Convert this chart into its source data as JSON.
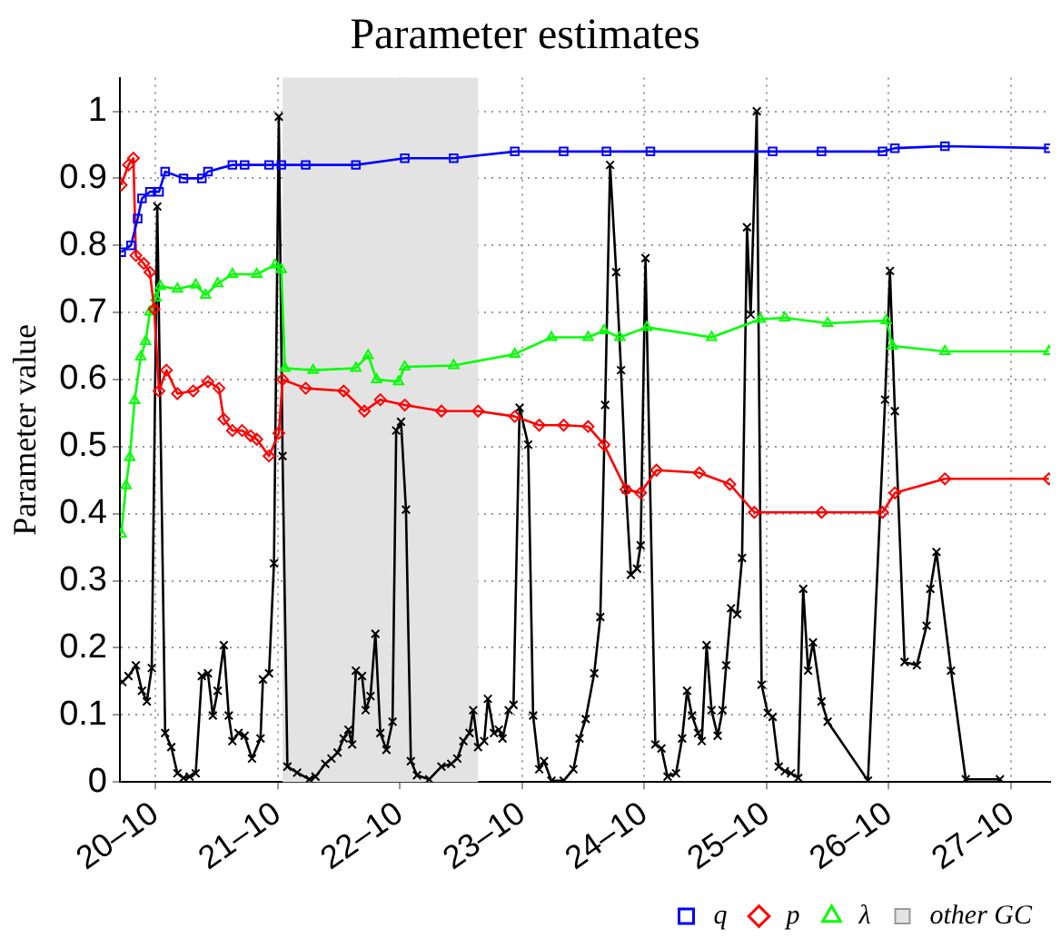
{
  "chart_data": {
    "type": "line",
    "title": "Parameter estimates",
    "ylabel": "Parameter value",
    "xlim": [
      "--10-19T17:02",
      "--10-27T07:41"
    ],
    "ylim": [
      0,
      1.05
    ],
    "xticks": [
      {
        "value": "--10-20",
        "label": "20–10"
      },
      {
        "value": "--10-21",
        "label": "21–10"
      },
      {
        "value": "--10-22",
        "label": "22–10"
      },
      {
        "value": "--10-23",
        "label": "23–10"
      },
      {
        "value": "--10-24",
        "label": "24–10"
      },
      {
        "value": "--10-25",
        "label": "25–10"
      },
      {
        "value": "--10-26",
        "label": "26–10"
      },
      {
        "value": "--10-27",
        "label": "27–10"
      }
    ],
    "yticks": [
      0,
      0.1,
      0.2,
      0.3,
      0.4,
      0.5,
      0.6,
      0.7,
      0.8,
      0.9,
      1
    ],
    "grid": true,
    "legend": "bottom right",
    "line_style": "solid",
    "bands": [
      {
        "axis": "x",
        "from": "--10-21T00:58",
        "to": "--10-22T15:22",
        "label": "other GC",
        "color": "#e3e3e3"
      }
    ],
    "series": [
      {
        "name": "q",
        "color": "#0000ff",
        "marker": "square",
        "x": [
          "--10-19T17:17",
          "--10-19T19:12",
          "--10-19T20:31",
          "--10-19T21:22",
          "--10-19T22:55",
          "--10-20T00:43",
          "--10-20T01:55",
          "--10-20T05:31",
          "--10-20T09:07",
          "--10-20T10:19",
          "--10-20T15:07",
          "--10-20T17:31",
          "--10-20T22:19",
          "--10-21T00:43",
          "--10-21T05:31",
          "--10-21T15:22",
          "--10-22T00:58",
          "--10-22T10:34",
          "--10-22T22:34",
          "--10-23T08:10",
          "--10-23T16:34",
          "--10-24T01:12",
          "--10-25T01:12",
          "--10-25T10:48",
          "--10-25T22:48",
          "--10-26T01:12",
          "--10-26T11:02",
          "--10-27T07:26"
        ],
        "values": [
          0.79,
          0.8,
          0.84,
          0.87,
          0.88,
          0.88,
          0.91,
          0.9,
          0.9,
          0.91,
          0.92,
          0.92,
          0.92,
          0.92,
          0.92,
          0.92,
          0.93,
          0.93,
          0.94,
          0.94,
          0.94,
          0.94,
          0.94,
          0.94,
          0.94,
          0.945,
          0.948,
          0.945
        ]
      },
      {
        "name": "p",
        "color": "#ff0000",
        "marker": "diamond",
        "x": [
          "--10-19T17:17",
          "--10-19T18:43",
          "--10-19T19:41",
          "--10-19T20:10",
          "--10-19T21:43",
          "--10-19T22:55",
          "--10-19T23:46",
          "--10-20T00:43",
          "--10-20T02:10",
          "--10-20T04:19",
          "--10-20T07:26",
          "--10-20T10:19",
          "--10-20T12:29",
          "--10-20T13:26",
          "--10-20T15:07",
          "--10-20T17:02",
          "--10-20T18:43",
          "--10-20T19:55",
          "--10-20T22:19",
          "--10-21T00:14",
          "--10-21T00:58",
          "--10-21T05:31",
          "--10-21T12:58",
          "--10-21T17:02",
          "--10-21T20:10",
          "--10-22T00:58",
          "--10-22T08:10",
          "--10-22T15:22",
          "--10-22T22:34",
          "--10-23T03:22",
          "--10-23T08:10",
          "--10-23T12:58",
          "--10-23T16:05",
          "--10-23T20:24",
          "--10-23T23:17",
          "--10-24T02:24",
          "--10-24T10:48",
          "--10-24T16:48",
          "--10-24T21:36",
          "--10-25T10:48",
          "--10-25T22:48",
          "--10-26T01:12",
          "--10-26T11:02",
          "--10-27T07:26"
        ],
        "values": [
          0.89,
          0.92,
          0.93,
          0.785,
          0.773,
          0.76,
          0.705,
          0.583,
          0.614,
          0.579,
          0.583,
          0.597,
          0.587,
          0.541,
          0.524,
          0.524,
          0.516,
          0.511,
          0.486,
          0.52,
          0.6,
          0.587,
          0.583,
          0.553,
          0.57,
          0.562,
          0.553,
          0.553,
          0.545,
          0.532,
          0.532,
          0.53,
          0.503,
          0.436,
          0.431,
          0.465,
          0.461,
          0.444,
          0.402,
          0.402,
          0.402,
          0.431,
          0.452,
          0.452
        ]
      },
      {
        "name": "λ",
        "color": "#00ff00",
        "marker": "triangle",
        "x": [
          "--10-19T17:17",
          "--10-19T18:14",
          "--10-19T18:58",
          "--10-19T19:55",
          "--10-19T21:07",
          "--10-19T22:05",
          "--10-19T22:55",
          "--10-20T00:07",
          "--10-20T00:58",
          "--10-20T04:19",
          "--10-20T07:55",
          "--10-20T09:50",
          "--10-20T12:14",
          "--10-20T15:07",
          "--10-20T19:55",
          "--10-20T23:31",
          "--10-21T00:43",
          "--10-21T01:26",
          "--10-21T06:58",
          "--10-21T15:22",
          "--10-21T17:46",
          "--10-21T19:26",
          "--10-21T23:46",
          "--10-22T00:58",
          "--10-22T10:34",
          "--10-22T22:34",
          "--10-23T05:46",
          "--10-23T12:58",
          "--10-23T16:05",
          "--10-23T19:12",
          "--10-24T00:29",
          "--10-24T13:12",
          "--10-24T22:48",
          "--10-25T03:36",
          "--10-25T12:00",
          "--10-25T23:31",
          "--10-26T00:43",
          "--10-26T11:02",
          "--10-27T07:26"
        ],
        "values": [
          0.37,
          0.442,
          0.484,
          0.569,
          0.634,
          0.657,
          0.701,
          0.722,
          0.739,
          0.735,
          0.741,
          0.726,
          0.743,
          0.757,
          0.757,
          0.771,
          0.764,
          0.617,
          0.614,
          0.617,
          0.636,
          0.6,
          0.597,
          0.619,
          0.621,
          0.638,
          0.663,
          0.663,
          0.673,
          0.663,
          0.678,
          0.663,
          0.69,
          0.692,
          0.684,
          0.688,
          0.65,
          0.642,
          0.642
        ]
      },
      {
        "color": "#000000",
        "marker": "cross",
        "x": [
          "--10-19T17:31",
          "--10-19T18:43",
          "--10-19T20:10",
          "--10-19T21:22",
          "--10-19T22:19",
          "--10-19T23:17",
          "--10-20T00:22",
          "--10-20T01:55",
          "--10-20T03:07",
          "--10-20T04:19",
          "--10-20T05:31",
          "--10-20T06:43",
          "--10-20T07:55",
          "--10-20T09:07",
          "--10-20T10:19",
          "--10-20T11:17",
          "--10-20T12:14",
          "--10-20T13:26",
          "--10-20T14:24",
          "--10-20T15:07",
          "--10-20T16:19",
          "--10-20T17:31",
          "--10-20T18:58",
          "--10-20T20:38",
          "--10-20T21:07",
          "--10-20T22:19",
          "--10-20T23:17",
          "--10-21T00:14",
          "--10-21T00:58",
          "--10-21T01:55",
          "--10-21T03:50",
          "--10-21T06:14",
          "--10-21T07:26",
          "--10-21T09:22",
          "--10-21T10:34",
          "--10-21T11:46",
          "--10-21T12:58",
          "--10-21T13:55",
          "--10-21T14:38",
          "--10-21T15:22",
          "--10-21T16:34",
          "--10-21T17:17",
          "--10-21T18:14",
          "--10-21T19:12",
          "--10-21T20:10",
          "--10-21T21:22",
          "--10-21T22:34",
          "--10-21T23:17",
          "--10-22T00:14",
          "--10-22T01:12",
          "--10-22T02:10",
          "--10-22T03:22",
          "--10-22T05:46",
          "--10-22T08:10",
          "--10-22T10:05",
          "--10-22T11:17",
          "--10-22T12:29",
          "--10-22T13:41",
          "--10-22T14:24",
          "--10-22T15:22",
          "--10-22T16:34",
          "--10-22T17:17",
          "--10-22T18:29",
          "--10-22T19:26",
          "--10-22T20:10",
          "--10-22T21:22",
          "--10-22T22:19",
          "--10-22T23:31",
          "--10-23T01:12",
          "--10-23T02:10",
          "--10-23T03:22",
          "--10-23T04:19",
          "--10-23T05:46",
          "--10-23T08:10",
          "--10-23T10:05",
          "--10-23T11:17",
          "--10-23T12:29",
          "--10-23T14:10",
          "--10-23T15:22",
          "--10-23T16:19",
          "--10-23T17:17",
          "--10-23T18:29",
          "--10-23T19:26",
          "--10-23T20:24",
          "--10-23T21:22",
          "--10-23T22:34",
          "--10-23T23:17",
          "--10-24T00:14",
          "--10-24T02:10",
          "--10-24T03:22",
          "--10-24T04:34",
          "--10-24T06:14",
          "--10-24T07:26",
          "--10-24T08:24",
          "--10-24T09:22",
          "--10-24T10:34",
          "--10-24T11:17",
          "--10-24T12:14",
          "--10-24T13:12",
          "--10-24T14:24",
          "--10-24T15:22",
          "--10-24T16:05",
          "--10-24T17:02",
          "--10-24T18:14",
          "--10-24T19:12",
          "--10-24T20:10",
          "--10-24T20:53",
          "--10-24T22:05",
          "--10-24T23:02",
          "--10-25T00:14",
          "--10-25T01:12",
          "--10-25T02:24",
          "--10-25T03:36",
          "--10-25T04:48",
          "--10-25T06:14",
          "--10-25T07:12",
          "--10-25T08:10",
          "--10-25T09:07",
          "--10-25T10:48",
          "--10-25T12:00",
          "--10-25T19:55",
          "--10-25T23:17",
          "--10-26T00:14",
          "--10-26T01:12",
          "--10-26T03:07",
          "--10-26T05:31",
          "--10-26T07:26",
          "--10-26T08:10",
          "--10-26T09:22",
          "--10-26T12:14",
          "--10-26T15:07",
          "--10-26T21:50"
        ],
        "values": [
          0.149,
          0.158,
          0.174,
          0.136,
          0.12,
          0.17,
          0.858,
          0.073,
          0.052,
          0.013,
          0.006,
          0.008,
          0.013,
          0.158,
          0.162,
          0.099,
          0.136,
          0.204,
          0.099,
          0.061,
          0.073,
          0.069,
          0.035,
          0.065,
          0.153,
          0.162,
          0.326,
          0.992,
          0.486,
          0.023,
          0.014,
          0.004,
          0.008,
          0.027,
          0.035,
          0.044,
          0.065,
          0.078,
          0.056,
          0.166,
          0.158,
          0.107,
          0.128,
          0.221,
          0.073,
          0.048,
          0.09,
          0.524,
          0.537,
          0.406,
          0.031,
          0.01,
          0.004,
          0.023,
          0.027,
          0.035,
          0.061,
          0.073,
          0.107,
          0.052,
          0.061,
          0.124,
          0.073,
          0.078,
          0.065,
          0.107,
          0.115,
          0.558,
          0.503,
          0.099,
          0.019,
          0.031,
          0.002,
          0.002,
          0.019,
          0.065,
          0.094,
          0.162,
          0.246,
          0.562,
          0.92,
          0.76,
          0.614,
          0.436,
          0.309,
          0.318,
          0.353,
          0.781,
          0.056,
          0.05,
          0.008,
          0.013,
          0.065,
          0.136,
          0.099,
          0.073,
          0.061,
          0.204,
          0.107,
          0.069,
          0.107,
          0.174,
          0.259,
          0.25,
          0.334,
          0.827,
          0.697,
          1.0,
          0.145,
          0.103,
          0.097,
          0.023,
          0.016,
          0.013,
          0.006,
          0.288,
          0.166,
          0.208,
          0.12,
          0.09,
          0.002,
          0.57,
          0.762,
          0.553,
          0.179,
          0.174,
          0.233,
          0.288,
          0.343,
          0.166,
          0.004,
          0.004
        ]
      }
    ]
  }
}
